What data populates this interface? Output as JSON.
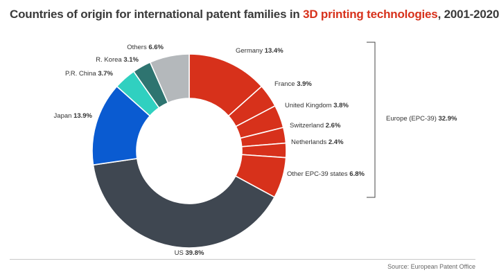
{
  "title": {
    "prefix": "Countries of origin for international patent families in ",
    "highlight": "3D printing technologies",
    "suffix": ", 2001-2020"
  },
  "colors": {
    "europe": "#d7311b",
    "us": "#3f4751",
    "japan": "#0a5bd1",
    "china": "#30d0c0",
    "korea": "#2e7470",
    "others": "#b4b8bb",
    "highlight": "#d7311b"
  },
  "chart_data": {
    "type": "pie",
    "donut": true,
    "unit": "%",
    "slices": [
      {
        "label": "Germany",
        "value": 13.4,
        "color": "#d7311b",
        "group": "europe"
      },
      {
        "label": "France",
        "value": 3.9,
        "color": "#d7311b",
        "group": "europe"
      },
      {
        "label": "United Kingdom",
        "value": 3.8,
        "color": "#d7311b",
        "group": "europe"
      },
      {
        "label": "Switzerland",
        "value": 2.6,
        "color": "#d7311b",
        "group": "europe"
      },
      {
        "label": "Netherlands",
        "value": 2.4,
        "color": "#d7311b",
        "group": "europe"
      },
      {
        "label": "Other EPC-39 states",
        "value": 6.8,
        "color": "#d7311b",
        "group": "europe"
      },
      {
        "label": "US",
        "value": 39.8,
        "color": "#3f4751"
      },
      {
        "label": "Japan",
        "value": 13.9,
        "color": "#0a5bd1"
      },
      {
        "label": "P.R. China",
        "value": 3.7,
        "color": "#30d0c0"
      },
      {
        "label": "R. Korea",
        "value": 3.1,
        "color": "#2e7470"
      },
      {
        "label": "Others",
        "value": 6.6,
        "color": "#b4b8bb"
      }
    ],
    "group_annotation": {
      "label": "Europe (EPC-39)",
      "value": 32.9
    }
  },
  "source": "Source: European Patent Office"
}
